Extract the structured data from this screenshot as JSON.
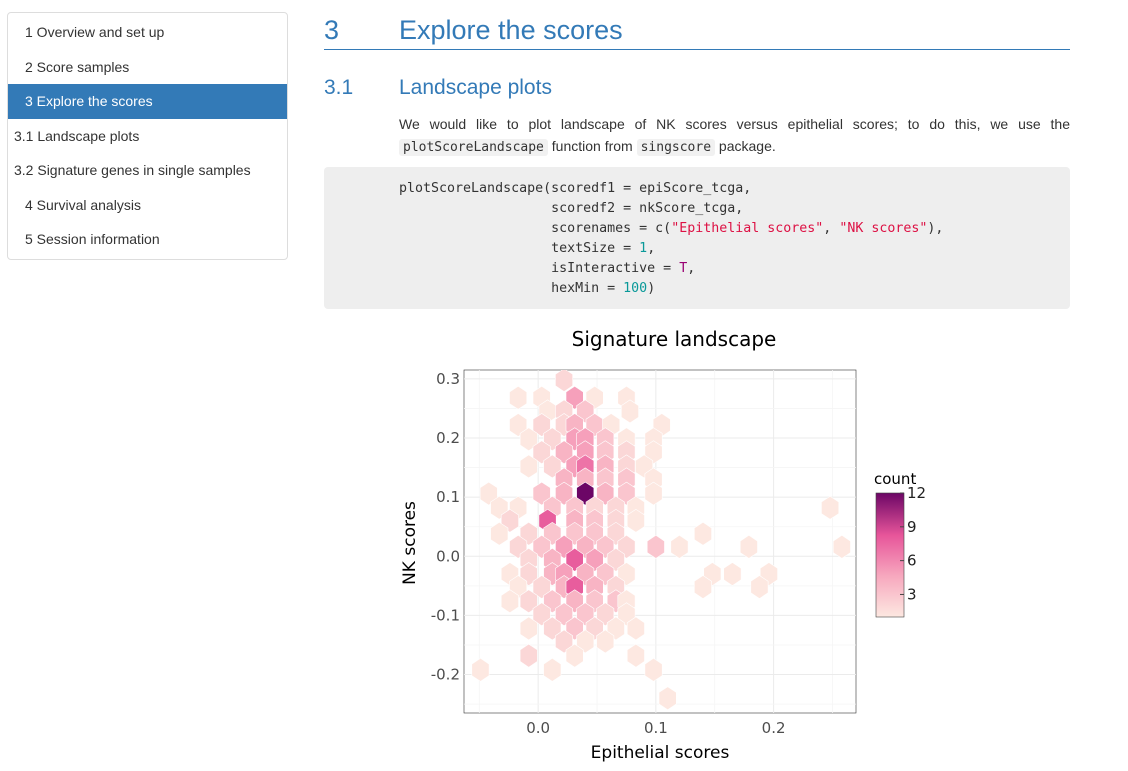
{
  "toc": {
    "items": [
      {
        "label": "1 Overview and set up",
        "level": 1,
        "active": false
      },
      {
        "label": "2 Score samples",
        "level": 1,
        "active": false
      },
      {
        "label": "3 Explore the scores",
        "level": 1,
        "active": true
      },
      {
        "label": "3.1 Landscape plots",
        "level": 2,
        "active": false
      },
      {
        "label": "3.2 Signature genes in single samples",
        "level": 2,
        "active": false
      },
      {
        "label": "4 Survival analysis",
        "level": 1,
        "active": false
      },
      {
        "label": "5 Session information",
        "level": 1,
        "active": false
      }
    ],
    "active_color": "#337ab7"
  },
  "section": {
    "number": "3",
    "title": "Explore the scores"
  },
  "subsection": {
    "number": "3.1",
    "title": "Landscape plots"
  },
  "paragraph": {
    "part1": "We would like to plot landscape of NK scores versus epithelial scores; to do this, we use the ",
    "code1": "plotScoreLandscape",
    "part2": " function from ",
    "code2": "singscore",
    "part3": " package."
  },
  "code": {
    "line1": "plotScoreLandscape(scoredf1 = epiScore_tcga,",
    "line2": "                   scoredf2 = nkScore_tcga,",
    "line3_a": "                   scorenames = c(",
    "line3_s1": "\"Epithelial scores\"",
    "line3_b": ", ",
    "line3_s2": "\"NK scores\"",
    "line3_c": "),",
    "line4_a": "                   textSize = ",
    "line4_n": "1",
    "line4_b": ",",
    "line5_a": "                   isInteractive = ",
    "line5_k": "T",
    "line5_b": ",",
    "line6_a": "                   hexMin = ",
    "line6_n": "100",
    "line6_b": ")"
  },
  "chart_data": {
    "type": "heatmap",
    "title": "Signature landscape",
    "xlabel": "Epithelial scores",
    "ylabel": "NK scores",
    "xlim": [
      -0.063,
      0.27
    ],
    "ylim": [
      -0.265,
      0.315
    ],
    "x_ticks": [
      0.0,
      0.1,
      0.2
    ],
    "x_tick_labels": [
      "0.0",
      "0.1",
      "0.2"
    ],
    "y_ticks": [
      -0.2,
      -0.1,
      0.0,
      0.1,
      0.2,
      0.3
    ],
    "y_tick_labels": [
      "-0.2",
      "-0.1",
      "0.0",
      "0.1",
      "0.2",
      "0.3"
    ],
    "grid": true,
    "legend": {
      "title": "count",
      "min": 1,
      "max": 12,
      "ticks": [
        3,
        6,
        9,
        12
      ],
      "tick_labels": [
        "3",
        "6",
        "9",
        "12"
      ],
      "placement": "right",
      "colors": [
        "#fde8e1",
        "#f7a8be",
        "#e7559a",
        "#6c0666"
      ]
    },
    "hex_size_x": 0.0085,
    "hex_size_y": 0.0195,
    "hexagons": [
      {
        "x": 0.022,
        "y": 0.298,
        "count": 2
      },
      {
        "x": -0.017,
        "y": 0.268,
        "count": 1
      },
      {
        "x": 0.003,
        "y": 0.268,
        "count": 1
      },
      {
        "x": 0.031,
        "y": 0.268,
        "count": 5
      },
      {
        "x": 0.048,
        "y": 0.268,
        "count": 1
      },
      {
        "x": 0.075,
        "y": 0.268,
        "count": 1
      },
      {
        "x": 0.008,
        "y": 0.245,
        "count": 1
      },
      {
        "x": 0.022,
        "y": 0.245,
        "count": 2
      },
      {
        "x": 0.04,
        "y": 0.245,
        "count": 3
      },
      {
        "x": 0.078,
        "y": 0.245,
        "count": 1
      },
      {
        "x": -0.017,
        "y": 0.222,
        "count": 1
      },
      {
        "x": 0.003,
        "y": 0.222,
        "count": 2
      },
      {
        "x": 0.022,
        "y": 0.222,
        "count": 2
      },
      {
        "x": 0.031,
        "y": 0.222,
        "count": 4
      },
      {
        "x": 0.048,
        "y": 0.222,
        "count": 3
      },
      {
        "x": 0.062,
        "y": 0.222,
        "count": 1
      },
      {
        "x": 0.105,
        "y": 0.222,
        "count": 1
      },
      {
        "x": -0.008,
        "y": 0.198,
        "count": 1
      },
      {
        "x": 0.012,
        "y": 0.198,
        "count": 2
      },
      {
        "x": 0.031,
        "y": 0.198,
        "count": 5
      },
      {
        "x": 0.04,
        "y": 0.198,
        "count": 5
      },
      {
        "x": 0.057,
        "y": 0.198,
        "count": 3
      },
      {
        "x": 0.075,
        "y": 0.198,
        "count": 1
      },
      {
        "x": 0.098,
        "y": 0.198,
        "count": 1
      },
      {
        "x": 0.003,
        "y": 0.176,
        "count": 2
      },
      {
        "x": 0.022,
        "y": 0.176,
        "count": 4
      },
      {
        "x": 0.04,
        "y": 0.176,
        "count": 5
      },
      {
        "x": 0.057,
        "y": 0.176,
        "count": 3
      },
      {
        "x": 0.075,
        "y": 0.176,
        "count": 2
      },
      {
        "x": 0.098,
        "y": 0.176,
        "count": 1
      },
      {
        "x": -0.008,
        "y": 0.152,
        "count": 1
      },
      {
        "x": 0.012,
        "y": 0.152,
        "count": 2
      },
      {
        "x": 0.031,
        "y": 0.152,
        "count": 5
      },
      {
        "x": 0.04,
        "y": 0.152,
        "count": 7
      },
      {
        "x": 0.057,
        "y": 0.152,
        "count": 4
      },
      {
        "x": 0.075,
        "y": 0.152,
        "count": 2
      },
      {
        "x": 0.09,
        "y": 0.152,
        "count": 1
      },
      {
        "x": 0.022,
        "y": 0.13,
        "count": 4
      },
      {
        "x": 0.04,
        "y": 0.13,
        "count": 4
      },
      {
        "x": 0.057,
        "y": 0.13,
        "count": 3
      },
      {
        "x": 0.075,
        "y": 0.13,
        "count": 3
      },
      {
        "x": 0.098,
        "y": 0.13,
        "count": 1
      },
      {
        "x": -0.042,
        "y": 0.106,
        "count": 1
      },
      {
        "x": 0.003,
        "y": 0.106,
        "count": 3
      },
      {
        "x": 0.022,
        "y": 0.106,
        "count": 4
      },
      {
        "x": 0.04,
        "y": 0.106,
        "count": 12
      },
      {
        "x": 0.057,
        "y": 0.106,
        "count": 4
      },
      {
        "x": 0.075,
        "y": 0.106,
        "count": 3
      },
      {
        "x": 0.098,
        "y": 0.106,
        "count": 1
      },
      {
        "x": -0.033,
        "y": 0.082,
        "count": 1
      },
      {
        "x": -0.017,
        "y": 0.082,
        "count": 1
      },
      {
        "x": 0.012,
        "y": 0.082,
        "count": 3
      },
      {
        "x": 0.031,
        "y": 0.082,
        "count": 3
      },
      {
        "x": 0.048,
        "y": 0.082,
        "count": 2
      },
      {
        "x": 0.066,
        "y": 0.082,
        "count": 2
      },
      {
        "x": 0.083,
        "y": 0.082,
        "count": 1
      },
      {
        "x": 0.248,
        "y": 0.082,
        "count": 1
      },
      {
        "x": -0.024,
        "y": 0.06,
        "count": 2
      },
      {
        "x": 0.008,
        "y": 0.06,
        "count": 8
      },
      {
        "x": 0.031,
        "y": 0.06,
        "count": 4
      },
      {
        "x": 0.048,
        "y": 0.06,
        "count": 3
      },
      {
        "x": 0.066,
        "y": 0.06,
        "count": 2
      },
      {
        "x": 0.083,
        "y": 0.06,
        "count": 1
      },
      {
        "x": -0.033,
        "y": 0.038,
        "count": 1
      },
      {
        "x": -0.008,
        "y": 0.038,
        "count": 2
      },
      {
        "x": 0.012,
        "y": 0.038,
        "count": 3
      },
      {
        "x": 0.031,
        "y": 0.038,
        "count": 3
      },
      {
        "x": 0.048,
        "y": 0.038,
        "count": 3
      },
      {
        "x": 0.066,
        "y": 0.038,
        "count": 2
      },
      {
        "x": 0.14,
        "y": 0.038,
        "count": 1
      },
      {
        "x": -0.017,
        "y": 0.016,
        "count": 2
      },
      {
        "x": 0.003,
        "y": 0.016,
        "count": 3
      },
      {
        "x": 0.022,
        "y": 0.016,
        "count": 5
      },
      {
        "x": 0.04,
        "y": 0.016,
        "count": 4
      },
      {
        "x": 0.057,
        "y": 0.016,
        "count": 3
      },
      {
        "x": 0.075,
        "y": 0.016,
        "count": 2
      },
      {
        "x": 0.1,
        "y": 0.016,
        "count": 3
      },
      {
        "x": 0.12,
        "y": 0.016,
        "count": 1
      },
      {
        "x": 0.179,
        "y": 0.016,
        "count": 1
      },
      {
        "x": 0.258,
        "y": 0.016,
        "count": 1
      },
      {
        "x": -0.008,
        "y": -0.006,
        "count": 2
      },
      {
        "x": 0.012,
        "y": -0.006,
        "count": 4
      },
      {
        "x": 0.031,
        "y": -0.006,
        "count": 8
      },
      {
        "x": 0.048,
        "y": -0.006,
        "count": 5
      },
      {
        "x": 0.066,
        "y": -0.006,
        "count": 2
      },
      {
        "x": -0.024,
        "y": -0.03,
        "count": 1
      },
      {
        "x": -0.008,
        "y": -0.03,
        "count": 2
      },
      {
        "x": 0.012,
        "y": -0.03,
        "count": 4
      },
      {
        "x": 0.022,
        "y": -0.03,
        "count": 5
      },
      {
        "x": 0.04,
        "y": -0.03,
        "count": 4
      },
      {
        "x": 0.057,
        "y": -0.03,
        "count": 3
      },
      {
        "x": 0.075,
        "y": -0.03,
        "count": 1
      },
      {
        "x": 0.148,
        "y": -0.03,
        "count": 1
      },
      {
        "x": 0.165,
        "y": -0.03,
        "count": 1
      },
      {
        "x": 0.196,
        "y": -0.03,
        "count": 1
      },
      {
        "x": -0.017,
        "y": -0.052,
        "count": 1
      },
      {
        "x": 0.003,
        "y": -0.052,
        "count": 2
      },
      {
        "x": 0.022,
        "y": -0.052,
        "count": 4
      },
      {
        "x": 0.031,
        "y": -0.052,
        "count": 8
      },
      {
        "x": 0.048,
        "y": -0.052,
        "count": 4
      },
      {
        "x": 0.066,
        "y": -0.052,
        "count": 2
      },
      {
        "x": 0.14,
        "y": -0.052,
        "count": 1
      },
      {
        "x": 0.188,
        "y": -0.052,
        "count": 1
      },
      {
        "x": -0.024,
        "y": -0.076,
        "count": 1
      },
      {
        "x": -0.008,
        "y": -0.076,
        "count": 2
      },
      {
        "x": 0.012,
        "y": -0.076,
        "count": 3
      },
      {
        "x": 0.031,
        "y": -0.076,
        "count": 4
      },
      {
        "x": 0.048,
        "y": -0.076,
        "count": 3
      },
      {
        "x": 0.066,
        "y": -0.076,
        "count": 3
      },
      {
        "x": 0.075,
        "y": -0.076,
        "count": 1
      },
      {
        "x": 0.003,
        "y": -0.098,
        "count": 2
      },
      {
        "x": 0.022,
        "y": -0.098,
        "count": 3
      },
      {
        "x": 0.04,
        "y": -0.098,
        "count": 3
      },
      {
        "x": 0.057,
        "y": -0.098,
        "count": 2
      },
      {
        "x": 0.075,
        "y": -0.098,
        "count": 1
      },
      {
        "x": -0.008,
        "y": -0.122,
        "count": 1
      },
      {
        "x": 0.012,
        "y": -0.122,
        "count": 2
      },
      {
        "x": 0.031,
        "y": -0.122,
        "count": 3
      },
      {
        "x": 0.048,
        "y": -0.122,
        "count": 2
      },
      {
        "x": 0.066,
        "y": -0.122,
        "count": 1
      },
      {
        "x": 0.083,
        "y": -0.122,
        "count": 1
      },
      {
        "x": 0.022,
        "y": -0.144,
        "count": 2
      },
      {
        "x": 0.04,
        "y": -0.144,
        "count": 1
      },
      {
        "x": 0.057,
        "y": -0.144,
        "count": 1
      },
      {
        "x": -0.008,
        "y": -0.168,
        "count": 2
      },
      {
        "x": 0.031,
        "y": -0.168,
        "count": 1
      },
      {
        "x": 0.083,
        "y": -0.168,
        "count": 1
      },
      {
        "x": -0.049,
        "y": -0.192,
        "count": 1
      },
      {
        "x": 0.012,
        "y": -0.192,
        "count": 1
      },
      {
        "x": 0.098,
        "y": -0.192,
        "count": 1
      },
      {
        "x": 0.11,
        "y": -0.24,
        "count": 1
      }
    ]
  }
}
